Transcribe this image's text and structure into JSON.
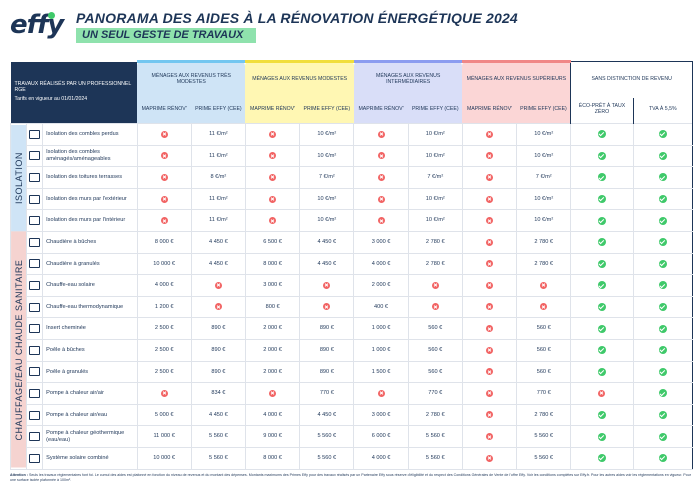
{
  "header": {
    "logo": "effy",
    "title": "PANORAMA DES AIDES À LA RÉNOVATION ÉNERGÉTIQUE 2024",
    "subtitle": "UN SEUL GESTE DE TRAVAUX"
  },
  "table": {
    "corner_title": "TRAVAUX RÉALISÉS PAR UN PROFESSIONNEL RGE",
    "corner_note": "Tarifs en vigueur au 01/01/2024",
    "groups": [
      {
        "label": "MÉNAGES AUX REVENUS TRÈS MODESTES",
        "color": "#73c6f0"
      },
      {
        "label": "MÉNAGES AUX REVENUS MODESTES",
        "color": "#f1de3b"
      },
      {
        "label": "MÉNAGES AUX REVENUS INTERMÉDIAIRES",
        "color": "#8b9cf0"
      },
      {
        "label": "MÉNAGES AUX REVENUS SUPÉRIEURS",
        "color": "#f08787"
      },
      {
        "label": "SANS DISTINCTION DE REVENU",
        "color": "#1d3557"
      }
    ],
    "subheaders": [
      "MAPRIME RÉNOV'",
      "PRIME EFFY (CEE)",
      "MAPRIME RÉNOV'",
      "PRIME EFFY (CEE)",
      "MAPRIME RÉNOV'",
      "PRIME EFFY (CEE)",
      "MAPRIME RÉNOV'",
      "PRIME EFFY (CEE)",
      "ÉCO-PRÊT À TAUX ZÉRO",
      "TVA À 5,5%"
    ],
    "categories": [
      "ISOLATION",
      "CHAUFFAGE/EAU CHAUDE SANITAIRE"
    ],
    "rows": [
      {
        "label": "Isolation des combles perdus",
        "icon": "attic-insulation-icon",
        "cells": [
          "x",
          "11 €/m²",
          "x",
          "10 €/m²",
          "x",
          "10 €/m²",
          "x",
          "10 €/m²",
          "ok",
          "ok"
        ]
      },
      {
        "label": "Isolation des combles aménagés/aménageables",
        "icon": "roof-insulation-icon",
        "cells": [
          "x",
          "11 €/m²",
          "x",
          "10 €/m²",
          "x",
          "10 €/m²",
          "x",
          "10 €/m²",
          "ok",
          "ok"
        ]
      },
      {
        "label": "Isolation des toitures terrasses",
        "icon": "flat-roof-icon",
        "cells": [
          "x",
          "8 €/m²",
          "x",
          "7 €/m²",
          "x",
          "7 €/m²",
          "x",
          "7 €/m²",
          "ok",
          "ok"
        ]
      },
      {
        "label": "Isolation des murs par l'extérieur",
        "icon": "exterior-wall-icon",
        "cells": [
          "x",
          "11 €/m²",
          "x",
          "10 €/m²",
          "x",
          "10 €/m²",
          "x",
          "10 €/m²",
          "ok",
          "ok"
        ]
      },
      {
        "label": "Isolation des murs par l'intérieur",
        "icon": "interior-wall-icon",
        "cells": [
          "x",
          "11 €/m²",
          "x",
          "10 €/m²",
          "x",
          "10 €/m²",
          "x",
          "10 €/m²",
          "ok",
          "ok"
        ]
      },
      {
        "label": "Chaudière à bûches",
        "icon": "log-boiler-icon",
        "cells": [
          "8 000 €",
          "4 450 €",
          "6 500 €",
          "4 450 €",
          "3 000 €",
          "2 780 €",
          "x",
          "2 780 €",
          "ok",
          "ok"
        ]
      },
      {
        "label": "Chaudière à granulés",
        "icon": "pellet-boiler-icon",
        "cells": [
          "10 000 €",
          "4 450 €",
          "8 000 €",
          "4 450 €",
          "4 000 €",
          "2 780 €",
          "x",
          "2 780 €",
          "ok",
          "ok"
        ]
      },
      {
        "label": "Chauffe-eau solaire",
        "icon": "solar-water-heater-icon",
        "cells": [
          "4 000 €",
          "x",
          "3 000 €",
          "x",
          "2 000 €",
          "x",
          "x",
          "x",
          "ok",
          "ok"
        ]
      },
      {
        "label": "Chauffe-eau thermodynamique",
        "icon": "thermodynamic-water-heater-icon",
        "cells": [
          "1 200 €",
          "x",
          "800 €",
          "x",
          "400 €",
          "x",
          "x",
          "x",
          "ok",
          "ok"
        ]
      },
      {
        "label": "Insert cheminée",
        "icon": "fireplace-insert-icon",
        "cells": [
          "2 500 €",
          "890 €",
          "2 000 €",
          "890 €",
          "1 000 €",
          "560 €",
          "x",
          "560 €",
          "ok",
          "ok"
        ]
      },
      {
        "label": "Poêle à bûches",
        "icon": "log-stove-icon",
        "cells": [
          "2 500 €",
          "890 €",
          "2 000 €",
          "890 €",
          "1 000 €",
          "560 €",
          "x",
          "560 €",
          "ok",
          "ok"
        ]
      },
      {
        "label": "Poêle à granulés",
        "icon": "pellet-stove-icon",
        "cells": [
          "2 500 €",
          "890 €",
          "2 000 €",
          "890 €",
          "1 500 €",
          "560 €",
          "x",
          "560 €",
          "ok",
          "ok"
        ]
      },
      {
        "label": "Pompe à chaleur air/air",
        "icon": "air-air-heat-pump-icon",
        "cells": [
          "x",
          "834 €",
          "x",
          "770 €",
          "x",
          "770 €",
          "x",
          "770 €",
          "x",
          "ok"
        ]
      },
      {
        "label": "Pompe à chaleur air/eau",
        "icon": "air-water-heat-pump-icon",
        "cells": [
          "5 000 €",
          "4 450 €",
          "4 000 €",
          "4 450 €",
          "3 000 €",
          "2 780 €",
          "x",
          "2 780 €",
          "ok",
          "ok"
        ]
      },
      {
        "label": "Pompe à chaleur géothermique (eau/eau)",
        "icon": "geothermal-heat-pump-icon",
        "cells": [
          "11 000 €",
          "5 560 €",
          "9 000 €",
          "5 560 €",
          "6 000 €",
          "5 560 €",
          "x",
          "5 560 €",
          "ok",
          "ok"
        ]
      },
      {
        "label": "Système solaire combiné",
        "icon": "combined-solar-system-icon",
        "cells": [
          "10 000 €",
          "5 560 €",
          "8 000 €",
          "5 560 €",
          "4 000 €",
          "5 560 €",
          "x",
          "5 560 €",
          "ok",
          "ok"
        ]
      }
    ]
  },
  "footer": {
    "attention": "Attention :",
    "text": "Seuls les travaux réglementaires font foi. Le cumul des aides est plafonné en fonction du niveau de revenus et du montant des dépenses. Montants maximums des Primes Effy pour des travaux réalisés par un Partenaire Effy sous réserve d'éligibilité et du respect des Conditions Générales de Vente de l'offre Effy. Voir les conditions complètes sur Effy.fr. Pour les autres aides voir les réglementations en vigueur. Pour une surface isolée plafonnée à 100m²."
  }
}
